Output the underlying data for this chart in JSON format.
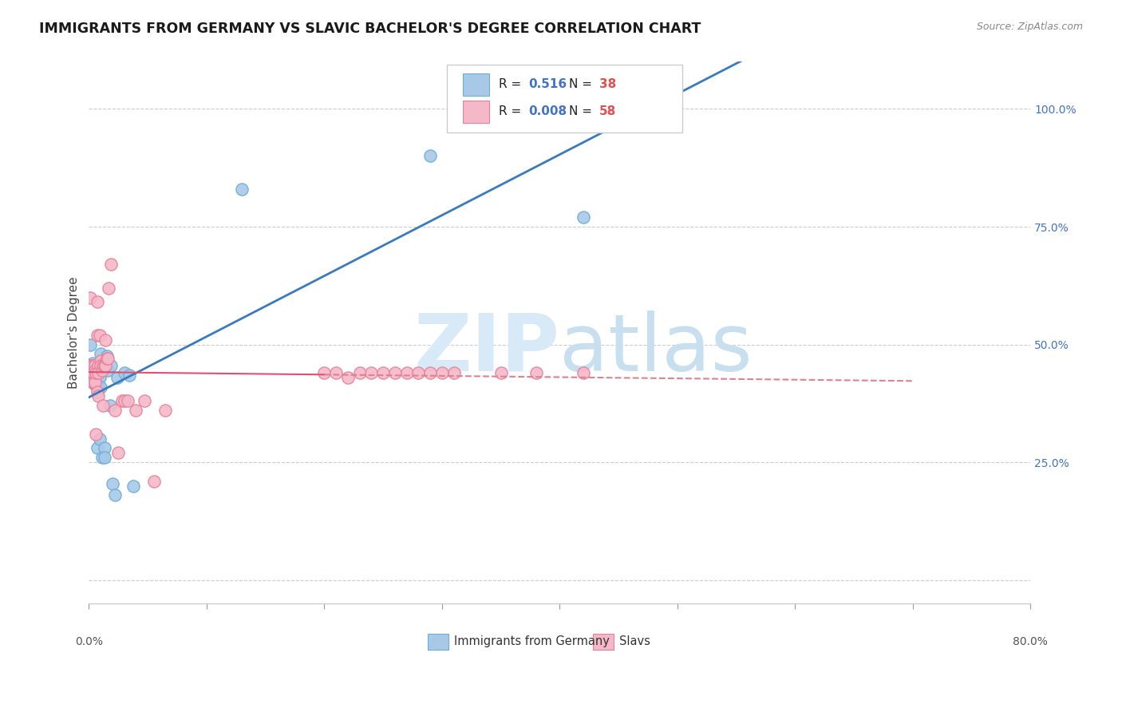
{
  "title": "IMMIGRANTS FROM GERMANY VS SLAVIC BACHELOR'S DEGREE CORRELATION CHART",
  "source": "Source: ZipAtlas.com",
  "ylabel": "Bachelor's Degree",
  "ytick_labels": [
    "",
    "25.0%",
    "50.0%",
    "75.0%",
    "100.0%"
  ],
  "ytick_values": [
    0.0,
    0.25,
    0.5,
    0.75,
    1.0
  ],
  "xlim": [
    0.0,
    0.8
  ],
  "ylim": [
    -0.05,
    1.1
  ],
  "blue_color": "#a8c8e8",
  "blue_edge": "#6baed6",
  "pink_color": "#f4b8c8",
  "pink_edge": "#e8809a",
  "trendline_blue_color": "#3a7abf",
  "trendline_pink_solid": "#e05070",
  "trendline_pink_dash": "#e08090",
  "watermark_color": "#d8eaf8",
  "r_color": "#4472c4",
  "n_color": "#e05050",
  "germany_x": [
    0.001,
    0.001,
    0.002,
    0.003,
    0.003,
    0.004,
    0.004,
    0.005,
    0.005,
    0.005,
    0.006,
    0.006,
    0.007,
    0.007,
    0.008,
    0.008,
    0.009,
    0.009,
    0.01,
    0.01,
    0.011,
    0.012,
    0.013,
    0.013,
    0.015,
    0.016,
    0.018,
    0.019,
    0.02,
    0.022,
    0.024,
    0.03,
    0.034,
    0.038,
    0.13,
    0.29,
    0.42,
    0.46
  ],
  "germany_y": [
    0.5,
    0.455,
    0.44,
    0.46,
    0.44,
    0.455,
    0.43,
    0.435,
    0.415,
    0.42,
    0.44,
    0.455,
    0.43,
    0.28,
    0.455,
    0.41,
    0.43,
    0.3,
    0.48,
    0.41,
    0.26,
    0.455,
    0.28,
    0.26,
    0.475,
    0.445,
    0.37,
    0.455,
    0.205,
    0.18,
    0.43,
    0.44,
    0.435,
    0.2,
    0.83,
    0.9,
    0.77,
    1.0
  ],
  "slavic_x": [
    0.001,
    0.001,
    0.002,
    0.002,
    0.003,
    0.003,
    0.003,
    0.004,
    0.004,
    0.004,
    0.005,
    0.005,
    0.005,
    0.006,
    0.006,
    0.007,
    0.007,
    0.007,
    0.008,
    0.008,
    0.008,
    0.009,
    0.01,
    0.01,
    0.011,
    0.012,
    0.012,
    0.013,
    0.014,
    0.014,
    0.015,
    0.016,
    0.017,
    0.019,
    0.022,
    0.025,
    0.028,
    0.03,
    0.033,
    0.04,
    0.047,
    0.055,
    0.065,
    0.2,
    0.21,
    0.22,
    0.23,
    0.24,
    0.25,
    0.26,
    0.27,
    0.28,
    0.29,
    0.3,
    0.31,
    0.35,
    0.38,
    0.42
  ],
  "slavic_y": [
    0.6,
    0.455,
    0.455,
    0.44,
    0.455,
    0.44,
    0.42,
    0.455,
    0.44,
    0.42,
    0.455,
    0.445,
    0.42,
    0.44,
    0.31,
    0.59,
    0.52,
    0.4,
    0.455,
    0.44,
    0.39,
    0.52,
    0.465,
    0.455,
    0.445,
    0.455,
    0.37,
    0.455,
    0.51,
    0.455,
    0.47,
    0.47,
    0.62,
    0.67,
    0.36,
    0.27,
    0.38,
    0.38,
    0.38,
    0.36,
    0.38,
    0.21,
    0.36,
    0.44,
    0.44,
    0.43,
    0.44,
    0.44,
    0.44,
    0.44,
    0.44,
    0.44,
    0.44,
    0.44,
    0.44,
    0.44,
    0.44,
    0.44
  ],
  "xticks": [
    0.0,
    0.1,
    0.2,
    0.3,
    0.4,
    0.5,
    0.6,
    0.7,
    0.8
  ]
}
